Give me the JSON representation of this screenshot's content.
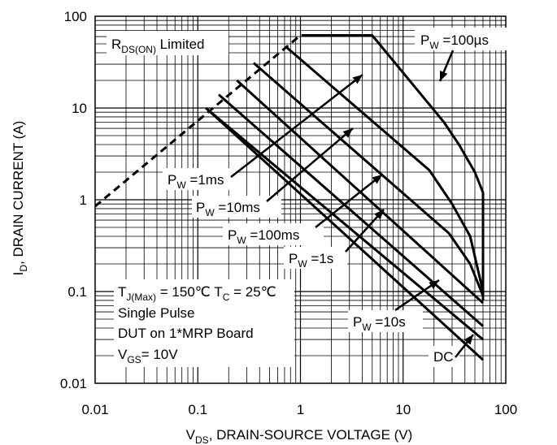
{
  "chart_data": {
    "type": "line",
    "title": "",
    "xlabel": {
      "main": "V",
      "sub": "DS",
      "rest": ", DRAIN-SOURCE VOLTAGE (V)"
    },
    "ylabel": {
      "main": "I",
      "sub": "D",
      "rest": ", DRAIN CURRENT (A)"
    },
    "x_scale": "log",
    "y_scale": "log",
    "xlim": [
      0.01,
      100
    ],
    "ylim": [
      0.01,
      100
    ],
    "grid": true,
    "x_ticks": [
      "0.01",
      "0.1",
      "1",
      "10",
      "100"
    ],
    "y_ticks": [
      "100",
      "10",
      "1",
      "0.1",
      "0.01"
    ],
    "series": [
      {
        "name": "RDS(ON) Limited",
        "style": "dashed",
        "x": [
          0.01,
          1.0,
          1.2
        ],
        "y": [
          0.85,
          62,
          62
        ]
      },
      {
        "name": "PW=100µs",
        "style": "solid",
        "x": [
          1.2,
          5.0,
          25,
          35,
          50,
          60,
          60
        ],
        "y": [
          62,
          62,
          7,
          4,
          2,
          1.2,
          0.08
        ]
      },
      {
        "name": "PW=1ms",
        "style": "solid",
        "x": [
          0.73,
          18,
          30,
          45,
          60
        ],
        "y": [
          46,
          2.1,
          0.9,
          0.4,
          0.1
        ]
      },
      {
        "name": "PW=10ms",
        "style": "solid",
        "x": [
          0.35,
          28,
          45,
          60
        ],
        "y": [
          31,
          0.43,
          0.2,
          0.09
        ]
      },
      {
        "name": "PW=100ms",
        "style": "solid",
        "x": [
          0.24,
          60
        ],
        "y": [
          20,
          0.075
        ]
      },
      {
        "name": "PW=1s",
        "style": "solid",
        "x": [
          0.16,
          60
        ],
        "y": [
          14,
          0.042
        ]
      },
      {
        "name": "PW=10s",
        "style": "solid",
        "x": [
          0.12,
          60
        ],
        "y": [
          10,
          0.03
        ]
      },
      {
        "name": "DC",
        "style": "solid",
        "x": [
          0.12,
          60
        ],
        "y": [
          10,
          0.018
        ]
      }
    ],
    "annotations": {
      "rds_label": {
        "main": "R",
        "sub": "DS(ON)",
        "rest": " Limited"
      },
      "pw_100us": {
        "main": "P",
        "sub": "W",
        "rest": " =100µs"
      },
      "pw_1ms": {
        "main": "P",
        "sub": "W",
        "rest": " =1ms"
      },
      "pw_10ms": {
        "main": "P",
        "sub": "W",
        "rest": " =10ms"
      },
      "pw_100ms": {
        "main": "P",
        "sub": "W",
        "rest": " =100ms"
      },
      "pw_1s": {
        "main": "P",
        "sub": "W",
        "rest": " =1s"
      },
      "pw_10s": {
        "main": "P",
        "sub": "W",
        "rest": " =10s"
      },
      "dc": "DC",
      "conditions": {
        "line1": {
          "a": "T",
          "a_sub": "J(Max)",
          "b": " = 150℃  T",
          "b_sub": "C",
          "c": " = 25℃"
        },
        "line2": "Single Pulse",
        "line3": "DUT on 1*MRP Board",
        "line4": {
          "a": "V",
          "a_sub": "GS",
          "b": "= 10V"
        }
      }
    }
  }
}
